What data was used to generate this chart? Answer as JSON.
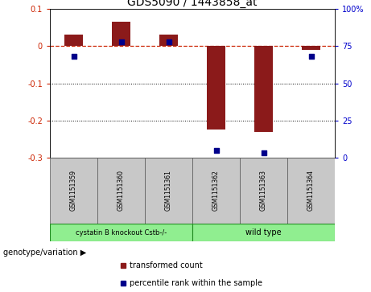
{
  "title": "GDS5090 / 1443858_at",
  "samples": [
    "GSM1151359",
    "GSM1151360",
    "GSM1151361",
    "GSM1151362",
    "GSM1151363",
    "GSM1151364"
  ],
  "transformed_count": [
    0.03,
    0.065,
    0.03,
    -0.225,
    -0.23,
    -0.01
  ],
  "percentile_rank": [
    68,
    78,
    78,
    5,
    3,
    68
  ],
  "ylim_left": [
    -0.3,
    0.1
  ],
  "ylim_right": [
    0,
    100
  ],
  "left_yticks": [
    -0.3,
    -0.2,
    -0.1,
    0.0,
    0.1
  ],
  "right_yticks": [
    0,
    25,
    50,
    75,
    100
  ],
  "bar_color": "#8B1A1A",
  "dot_color": "#00008B",
  "group1_label": "cystatin B knockout Cstb-/-",
  "group2_label": "wild type",
  "group_color": "#90EE90",
  "group_edge_color": "#228B22",
  "sample_box_color": "#C8C8C8",
  "genotype_label": "genotype/variation",
  "legend_bar_label": "transformed count",
  "legend_dot_label": "percentile rank within the sample",
  "background_color": "#ffffff",
  "tick_label_fontsize": 7,
  "title_fontsize": 10
}
